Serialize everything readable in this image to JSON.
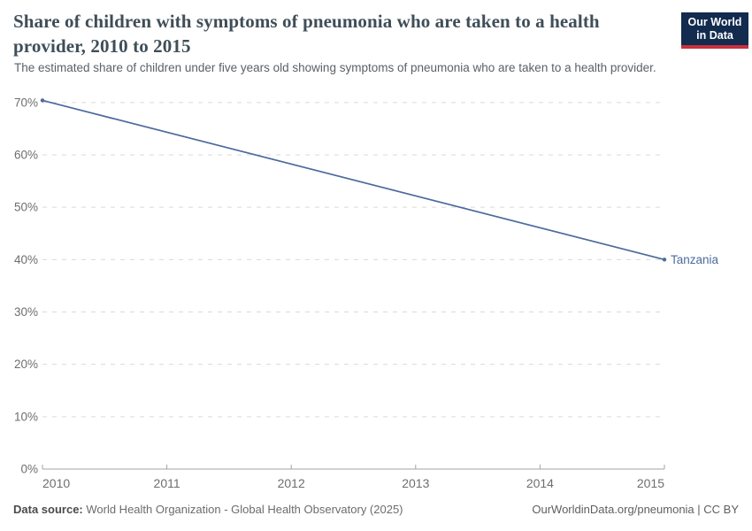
{
  "header": {
    "title": "Share of children with symptoms of pneumonia who are taken to a health provider, 2010 to 2015",
    "subtitle": "The estimated share of children under five years old showing symptoms of pneumonia who are taken to a health provider.",
    "logo": {
      "line1": "Our World",
      "line2": "in Data",
      "bg_color": "#122b4e",
      "accent_color": "#c9303c"
    }
  },
  "chart_data": {
    "type": "line",
    "title": "Share of children with symptoms of pneumonia who are taken to a health provider, 2010 to 2015",
    "xlabel": "",
    "ylabel": "",
    "x_ticks": [
      2010,
      2011,
      2012,
      2013,
      2014,
      2015
    ],
    "y_ticks": [
      0,
      10,
      20,
      30,
      40,
      50,
      60,
      70
    ],
    "y_tick_suffix": "%",
    "xlim": [
      2010,
      2015
    ],
    "ylim": [
      0,
      72
    ],
    "grid": "horizontal-dashed",
    "legend_position": "end-of-line-label",
    "series": [
      {
        "name": "Tanzania",
        "color": "#4c6a9c",
        "x": [
          2010,
          2015
        ],
        "values": [
          70.4,
          40.0
        ]
      }
    ],
    "colors": {
      "gridline": "#dadada",
      "axis": "#a3a3a3",
      "tick_label": "#6e6e6e"
    }
  },
  "footer": {
    "datasource_label": "Data source:",
    "datasource_value": " World Health Organization - Global Health Observatory (2025)",
    "credit": "OurWorldinData.org/pneumonia | CC BY"
  }
}
